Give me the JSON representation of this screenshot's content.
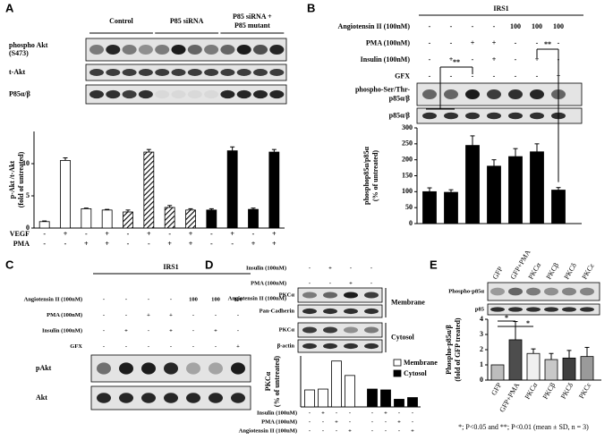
{
  "panels": {
    "A": {
      "label": "A",
      "groups": [
        [
          "Control"
        ],
        [
          "P85 siRNA"
        ],
        [
          "P85 siRNA +",
          "P85 mutant"
        ]
      ],
      "blot_rows": [
        [
          "phospho Akt",
          "(S473)"
        ],
        [
          "t-Akt"
        ],
        [
          "P85α/β"
        ]
      ]
    },
    "B": {
      "label": "B",
      "header": "IRS1",
      "treatments": [
        {
          "label": "Angiotensin II (100nM)",
          "signs": [
            "-",
            "-",
            "-",
            "-",
            "100",
            "100",
            "100"
          ]
        },
        {
          "label": "PMA (100nM)",
          "signs": [
            "-",
            "-",
            "+",
            "+",
            "-",
            "-",
            "-"
          ]
        },
        {
          "label": "Insulin (100nM)",
          "signs": [
            "-",
            "+",
            "-",
            "+",
            "-",
            "+",
            "-"
          ]
        },
        {
          "label": "GFX",
          "signs": [
            "-",
            "-",
            "-",
            "-",
            "-",
            "-",
            "+"
          ]
        }
      ],
      "blot_rows": [
        [
          "phospho-Ser/Thr-",
          "p85α/β"
        ],
        [
          "p85α/β"
        ]
      ]
    },
    "C": {
      "label": "C",
      "header": "IRS1",
      "treatments": [
        {
          "label": "Angiotensin II (100nM)",
          "signs": [
            "-",
            "-",
            "-",
            "-",
            "100",
            "100",
            "100"
          ]
        },
        {
          "label": "PMA (100nM)",
          "signs": [
            "-",
            "-",
            "+",
            "+",
            "-",
            "-",
            "-"
          ]
        },
        {
          "label": "Insulin (100nM)",
          "signs": [
            "-",
            "+",
            "-",
            "+",
            "-",
            "+",
            "-"
          ]
        },
        {
          "label": "GFX",
          "signs": [
            "-",
            "-",
            "-",
            "-",
            "-",
            "-",
            "+"
          ]
        }
      ],
      "blot_rows": [
        "pAkt",
        "Akt"
      ]
    },
    "D": {
      "label": "D",
      "treatments": [
        {
          "label": "Insulin (100nM)",
          "signs": [
            "-",
            "+",
            "-",
            "-"
          ]
        },
        {
          "label": "PMA (100nM)",
          "signs": [
            "-",
            "-",
            "+",
            "-"
          ]
        },
        {
          "label": "Angiotensin II (100nM)",
          "signs": [
            "-",
            "-",
            "-",
            "+"
          ]
        }
      ],
      "blot_rows": [
        "PKCα",
        "Pan-Cadherin",
        "PKCα",
        "β-actin"
      ],
      "fractions": [
        "Membrane",
        "Cytosol"
      ]
    },
    "E": {
      "label": "E",
      "columns": [
        "GFP",
        "GFP+PMA",
        "PKCα",
        "PKCβ",
        "PKCδ",
        "PKCε"
      ],
      "blot_rows": [
        "Phospho-p85α",
        "p85"
      ]
    }
  },
  "footnote": "*; P<0.05 and **; P<0.01 (mean ± SD, n = 3)",
  "chart_data": [
    {
      "type": "bar",
      "ylabel": [
        "p-Akt /t-Akt",
        "(fold of untreated)"
      ],
      "values": [
        1,
        10.5,
        3,
        2.8,
        2.5,
        11.8,
        3.2,
        2.8,
        2.8,
        12,
        2.9,
        11.8
      ],
      "errors": [
        0.1,
        0.4,
        0.1,
        0.1,
        0.3,
        0.4,
        0.3,
        0.2,
        0.2,
        0.6,
        0.2,
        0.4
      ],
      "fills": [
        "white",
        "white",
        "white",
        "white",
        "hatched",
        "hatched",
        "hatched",
        "hatched",
        "black",
        "black",
        "black",
        "black"
      ],
      "ylim": [
        0,
        15
      ],
      "yticks": [
        0,
        5,
        10
      ],
      "conditions": [
        {
          "label": "VEGF",
          "signs": [
            "-",
            "+",
            "-",
            "+",
            "-",
            "+",
            "-",
            "+",
            "-",
            "+",
            "-",
            "+"
          ]
        },
        {
          "label": "PMA",
          "signs": [
            "-",
            "-",
            "+",
            "+",
            "-",
            "-",
            "+",
            "+",
            "-",
            "-",
            "+",
            "+"
          ]
        }
      ]
    },
    {
      "type": "bar",
      "ylabel": [
        "phosphop85α/p85α",
        "(% of untreated)"
      ],
      "values": [
        100,
        98,
        245,
        180,
        210,
        225,
        105
      ],
      "errors": [
        12,
        8,
        30,
        20,
        25,
        25,
        8
      ],
      "color": "#000000",
      "ylim": [
        0,
        300
      ],
      "yticks": [
        0,
        50,
        100,
        150,
        200,
        250,
        300
      ],
      "annotations": [
        "**",
        "**"
      ]
    },
    {
      "type": "grouped-bar",
      "ylabel": [
        "PKCα",
        "(% of untreated)"
      ],
      "series": [
        {
          "name": "Membrane",
          "color": "#ffffff",
          "values": [
            100,
            105,
            270,
            185
          ]
        },
        {
          "name": "Cytosol",
          "color": "#000000",
          "values": [
            105,
            100,
            45,
            55
          ]
        }
      ],
      "ylim": [
        0,
        300
      ],
      "conditions": [
        {
          "label": "Insulin (100nM)",
          "signs": [
            "-",
            "+",
            "-",
            "-",
            "-",
            "+",
            "-",
            "-"
          ]
        },
        {
          "label": "PMA (100nM)",
          "signs": [
            "-",
            "-",
            "+",
            "-",
            "-",
            "-",
            "+",
            "-"
          ]
        },
        {
          "label": "Angiotensin II (100nM)",
          "signs": [
            "-",
            "-",
            "-",
            "+",
            "-",
            "-",
            "-",
            "+"
          ]
        }
      ]
    },
    {
      "type": "bar",
      "ylabel": [
        "Phospho-p85α/β",
        "(fold of GFP treated)"
      ],
      "categories": [
        "GFP",
        "GFP+PMA",
        "PKCα",
        "PKCβ",
        "PKCδ",
        "PKCε"
      ],
      "values": [
        1,
        2.65,
        1.75,
        1.35,
        1.45,
        1.55
      ],
      "errors": [
        0,
        1.2,
        0.3,
        0.4,
        0.5,
        0.6
      ],
      "colors": [
        "#bdbdbd",
        "#4d4d4d",
        "#f0f0f0",
        "#c8c8c8",
        "#3f3f3f",
        "#9a9a9a"
      ],
      "ylim": [
        0,
        4
      ],
      "yticks": [
        0,
        1,
        2,
        3,
        4
      ],
      "annotations": [
        "*",
        "*"
      ]
    }
  ]
}
